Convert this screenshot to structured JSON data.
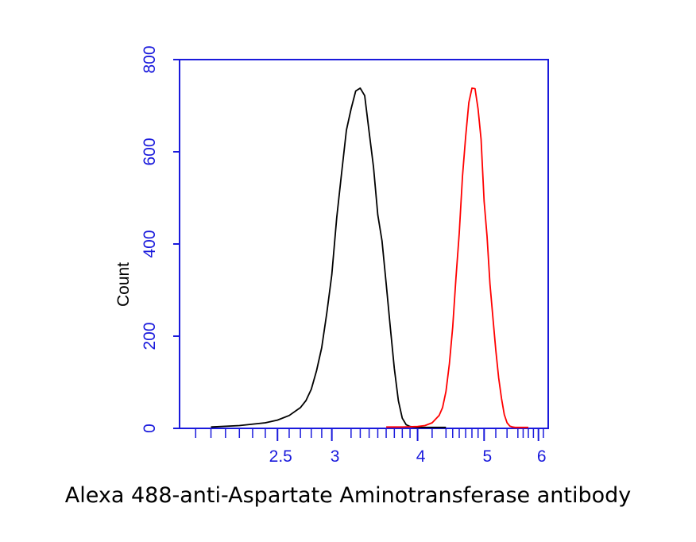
{
  "chart_data": {
    "type": "line",
    "title": "",
    "xlabel": "",
    "ylabel": "Count",
    "caption": "Alexa 488-anti-Aspartate Aminotransferase antibody",
    "xscale": "log",
    "xlim": [
      1.8,
      6.2
    ],
    "ylim": [
      0,
      800
    ],
    "y_ticks": [
      "0",
      "200",
      "400",
      "600",
      "800"
    ],
    "x_ticks": [
      {
        "value": 2.5,
        "label": "2.5"
      },
      {
        "value": 3,
        "label": "3"
      },
      {
        "value": 4,
        "label": "4"
      },
      {
        "value": 5,
        "label": "5"
      },
      {
        "value": 6,
        "label": "6"
      }
    ],
    "axis_color": "#1a1adc",
    "grid": false,
    "series": [
      {
        "color": "#000000",
        "x": [
          2.0,
          2.2,
          2.4,
          2.5,
          2.6,
          2.7,
          2.75,
          2.8,
          2.85,
          2.9,
          2.95,
          3.0,
          3.05,
          3.1,
          3.15,
          3.2,
          3.25,
          3.3,
          3.35,
          3.4,
          3.45,
          3.5,
          3.55,
          3.6,
          3.65,
          3.7,
          3.75,
          3.8,
          3.85,
          3.9,
          3.95,
          4.0,
          4.05,
          4.1,
          4.2,
          4.3,
          4.4
        ],
        "y": [
          3,
          6,
          12,
          18,
          28,
          45,
          60,
          85,
          125,
          175,
          250,
          340,
          450,
          560,
          640,
          700,
          725,
          745,
          715,
          650,
          560,
          470,
          400,
          320,
          220,
          130,
          60,
          22,
          8,
          4,
          3,
          2,
          2,
          2,
          2,
          2,
          2
        ]
      },
      {
        "color": "#ff0000",
        "x": [
          3.6,
          3.8,
          4.0,
          4.1,
          4.2,
          4.3,
          4.35,
          4.4,
          4.45,
          4.5,
          4.55,
          4.6,
          4.65,
          4.7,
          4.75,
          4.8,
          4.85,
          4.9,
          4.95,
          5.0,
          5.05,
          5.1,
          5.15,
          5.2,
          5.25,
          5.3,
          5.35,
          5.4,
          5.45,
          5.5,
          5.55,
          5.6,
          5.7,
          5.8
        ],
        "y": [
          3,
          3,
          4,
          6,
          12,
          28,
          45,
          80,
          140,
          220,
          320,
          430,
          540,
          640,
          700,
          745,
          730,
          700,
          620,
          500,
          410,
          320,
          240,
          170,
          110,
          65,
          30,
          12,
          5,
          3,
          2,
          2,
          2,
          2
        ]
      }
    ]
  }
}
